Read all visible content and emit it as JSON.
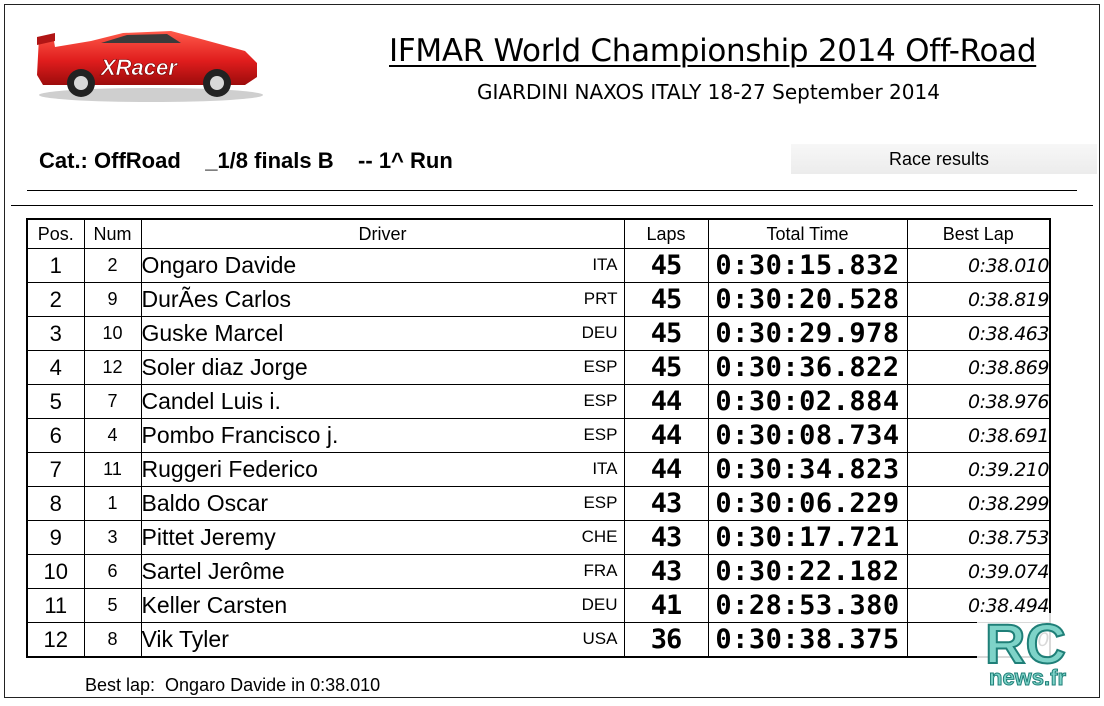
{
  "header": {
    "logo_text": "XRacer",
    "title": "IFMAR World Championship 2014 Off-Road",
    "subtitle": "GIARDINI NAXOS ITALY 18-27 September 2014",
    "category": "Cat.: OffRoad    _1/8 finals B    -- 1^ Run",
    "results_label": "Race results"
  },
  "table": {
    "columns": {
      "pos": "Pos.",
      "num": "Num",
      "driver": "Driver",
      "laps": "Laps",
      "total_time": "Total Time",
      "best_lap": "Best Lap"
    },
    "rows": [
      {
        "pos": "1",
        "num": "2",
        "driver": "Ongaro Davide",
        "nat": "ITA",
        "laps": "45",
        "total": "0:30:15.832",
        "best": "0:38.010"
      },
      {
        "pos": "2",
        "num": "9",
        "driver": "DurÃes Carlos",
        "nat": "PRT",
        "laps": "45",
        "total": "0:30:20.528",
        "best": "0:38.819"
      },
      {
        "pos": "3",
        "num": "10",
        "driver": "Guske Marcel",
        "nat": "DEU",
        "laps": "45",
        "total": "0:30:29.978",
        "best": "0:38.463"
      },
      {
        "pos": "4",
        "num": "12",
        "driver": "Soler diaz Jorge",
        "nat": "ESP",
        "laps": "45",
        "total": "0:30:36.822",
        "best": "0:38.869"
      },
      {
        "pos": "5",
        "num": "7",
        "driver": "Candel Luis i.",
        "nat": "ESP",
        "laps": "44",
        "total": "0:30:02.884",
        "best": "0:38.976"
      },
      {
        "pos": "6",
        "num": "4",
        "driver": "Pombo Francisco j.",
        "nat": "ESP",
        "laps": "44",
        "total": "0:30:08.734",
        "best": "0:38.691"
      },
      {
        "pos": "7",
        "num": "11",
        "driver": "Ruggeri Federico",
        "nat": "ITA",
        "laps": "44",
        "total": "0:30:34.823",
        "best": "0:39.210"
      },
      {
        "pos": "8",
        "num": "1",
        "driver": "Baldo Oscar",
        "nat": "ESP",
        "laps": "43",
        "total": "0:30:06.229",
        "best": "0:38.299"
      },
      {
        "pos": "9",
        "num": "3",
        "driver": "Pittet Jeremy",
        "nat": "CHE",
        "laps": "43",
        "total": "0:30:17.721",
        "best": "0:38.753"
      },
      {
        "pos": "10",
        "num": "6",
        "driver": "Sartel Jerôme",
        "nat": "FRA",
        "laps": "43",
        "total": "0:30:22.182",
        "best": "0:39.074"
      },
      {
        "pos": "11",
        "num": "5",
        "driver": "Keller Carsten",
        "nat": "DEU",
        "laps": "41",
        "total": "0:28:53.380",
        "best": "0:38.494"
      },
      {
        "pos": "12",
        "num": "8",
        "driver": "Vik Tyler",
        "nat": "USA",
        "laps": "36",
        "total": "0:30:38.375",
        "best": "0"
      }
    ]
  },
  "footer": {
    "best_lap_note": "Best lap:  Ongaro Davide in 0:38.010"
  },
  "watermark": {
    "line1": "RC",
    "line2": "news.fr"
  },
  "colors": {
    "logo_car": "#e01d1d",
    "watermark_fill": "#7ed3c8",
    "watermark_outline": "#1f7f78"
  }
}
